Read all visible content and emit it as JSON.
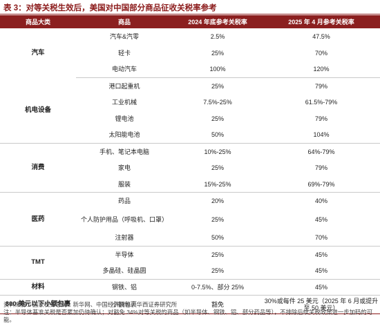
{
  "title": "表 3：对等关税生效后，美国对中国部分商品征收关税率参考",
  "table": {
    "headers": [
      "商品大类",
      "商品",
      "2024 年底参考关税率",
      "2025 年 4 月参考关税率"
    ],
    "groups": [
      {
        "category": "汽车",
        "rows": [
          {
            "item": "汽车&汽零",
            "rate_2024": "2.5%",
            "rate_2025": "47.5%"
          },
          {
            "item": "轻卡",
            "rate_2024": "25%",
            "rate_2025": "70%"
          },
          {
            "item": "电动汽车",
            "rate_2024": "100%",
            "rate_2025": "120%"
          }
        ]
      },
      {
        "category": "机电设备",
        "rows": [
          {
            "item": "港口起重机",
            "rate_2024": "25%",
            "rate_2025": "79%"
          },
          {
            "item": "工业机械",
            "rate_2024": "7.5%-25%",
            "rate_2025": "61.5%-79%"
          },
          {
            "item": "锂电池",
            "rate_2024": "25%",
            "rate_2025": "79%"
          },
          {
            "item": "太阳能电池",
            "rate_2024": "50%",
            "rate_2025": "104%"
          }
        ]
      },
      {
        "category": "消费",
        "rows": [
          {
            "item": "手机、笔记本电脑",
            "rate_2024": "10%-25%",
            "rate_2025": "64%-79%"
          },
          {
            "item": "家电",
            "rate_2024": "25%",
            "rate_2025": "79%"
          },
          {
            "item": "服装",
            "rate_2024": "15%-25%",
            "rate_2025": "69%-79%"
          }
        ]
      },
      {
        "category": "医药",
        "rows": [
          {
            "item": "药品",
            "rate_2024": "20%",
            "rate_2025": "40%"
          },
          {
            "item": "个人防护用品（呼吸机、口罩）",
            "rate_2024": "25%",
            "rate_2025": "45%"
          },
          {
            "item": "注射器",
            "rate_2024": "50%",
            "rate_2025": "70%"
          }
        ]
      },
      {
        "category": "TMT",
        "rows": [
          {
            "item": "半导体",
            "rate_2024": "25%",
            "rate_2025": "45%"
          },
          {
            "item": "多晶硅、硅晶圆",
            "rate_2024": "25%",
            "rate_2025": "45%"
          }
        ]
      },
      {
        "category": "材料",
        "rows": [
          {
            "item": "钢铁、铝",
            "rate_2024": "0-7.5%、部分 25%",
            "rate_2025": "45%"
          }
        ]
      },
      {
        "category": "800 美元以下小额包裹",
        "rows": [
          {
            "item": "小额包裹",
            "rate_2024": "豁免",
            "rate_2025": "30%或每件 25 美元（2025 年 6 月或提升至 50 美元）"
          }
        ]
      }
    ]
  },
  "source_note": [
    "资料来源：国家税务总局、新华网、中国经济网等，华西证券研究所",
    "注：半导体基准关税是否累加仍待确认；对豁免 34%对等关税的商品（如半导体、钢铁、铝、部分药品等），不排除后续关税政策进一步加码的可能。"
  ]
}
